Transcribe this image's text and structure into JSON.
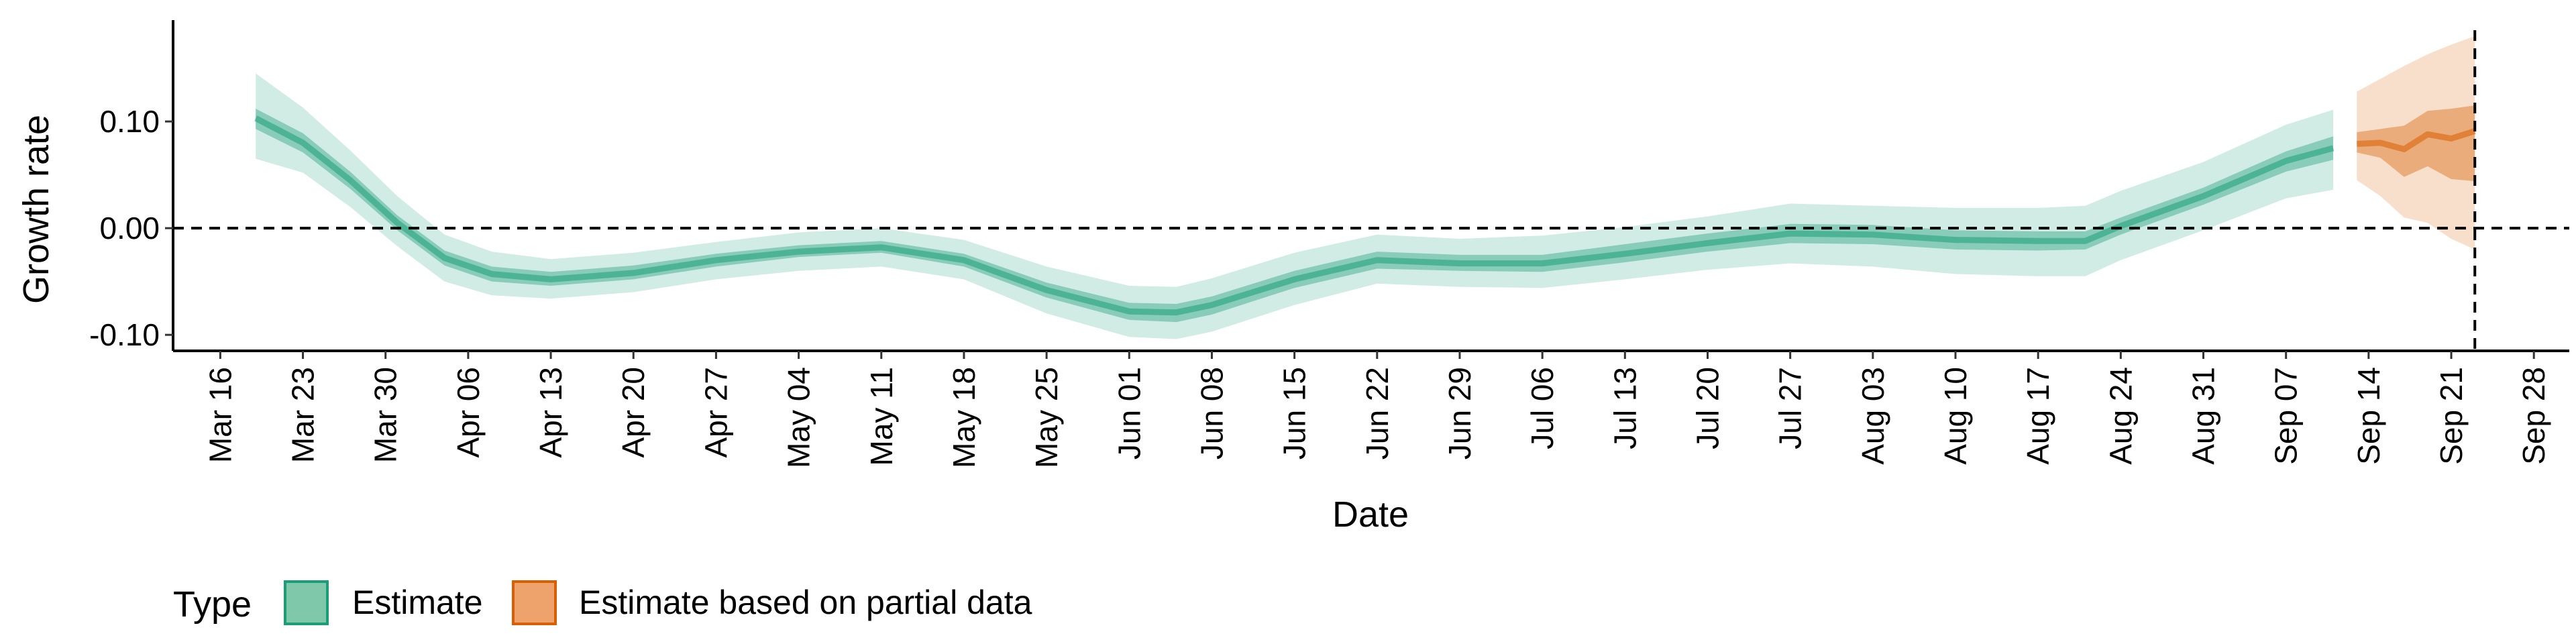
{
  "chart_data": {
    "type": "area",
    "title": "",
    "xlabel": "Date",
    "ylabel": "Growth rate",
    "x_axis": {
      "type": "date",
      "range": [
        "2020-03-12",
        "2020-10-01"
      ],
      "ticks": [
        "2020-03-16",
        "2020-03-23",
        "2020-03-30",
        "2020-04-06",
        "2020-04-13",
        "2020-04-20",
        "2020-04-27",
        "2020-05-04",
        "2020-05-11",
        "2020-05-18",
        "2020-05-25",
        "2020-06-01",
        "2020-06-08",
        "2020-06-15",
        "2020-06-22",
        "2020-06-29",
        "2020-07-06",
        "2020-07-13",
        "2020-07-20",
        "2020-07-27",
        "2020-08-03",
        "2020-08-10",
        "2020-08-17",
        "2020-08-24",
        "2020-08-31",
        "2020-09-07",
        "2020-09-14",
        "2020-09-21",
        "2020-09-28"
      ],
      "tick_labels": [
        "Mar 16",
        "Mar 23",
        "Mar 30",
        "Apr 06",
        "Apr 13",
        "Apr 20",
        "Apr 27",
        "May 04",
        "May 11",
        "May 18",
        "May 25",
        "Jun 01",
        "Jun 08",
        "Jun 15",
        "Jun 22",
        "Jun 29",
        "Jul 06",
        "Jul 13",
        "Jul 20",
        "Jul 27",
        "Aug 03",
        "Aug 10",
        "Aug 17",
        "Aug 24",
        "Aug 31",
        "Sep 07",
        "Sep 14",
        "Sep 21",
        "Sep 28"
      ]
    },
    "y_axis": {
      "range": [
        -0.115,
        0.195
      ],
      "ticks": [
        0.1,
        0.0,
        -0.1
      ],
      "tick_labels": [
        "0.10",
        "0.00",
        "-0.10"
      ]
    },
    "reference_lines": [
      {
        "axis": "y",
        "value": 0,
        "style": "dashed"
      },
      {
        "axis": "x",
        "value": "2020-09-23",
        "style": "dashed"
      }
    ],
    "grid": false,
    "legend": {
      "title": "Type",
      "position": "bottom-left",
      "entries": [
        {
          "label": "Estimate",
          "fill": "#7fc8aa",
          "border": "#1b9e77"
        },
        {
          "label": "Estimate based on partial data",
          "fill": "#eda36b",
          "border": "#d95f02"
        }
      ]
    },
    "series": [
      {
        "name": "Estimate",
        "color": "#1b9e77",
        "x": [
          "2020-03-19",
          "2020-03-23",
          "2020-03-27",
          "2020-03-31",
          "2020-04-04",
          "2020-04-08",
          "2020-04-13",
          "2020-04-20",
          "2020-04-27",
          "2020-05-04",
          "2020-05-11",
          "2020-05-18",
          "2020-05-25",
          "2020-06-01",
          "2020-06-05",
          "2020-06-08",
          "2020-06-15",
          "2020-06-22",
          "2020-06-29",
          "2020-07-06",
          "2020-07-13",
          "2020-07-20",
          "2020-07-27",
          "2020-08-03",
          "2020-08-10",
          "2020-08-17",
          "2020-08-21",
          "2020-08-24",
          "2020-08-31",
          "2020-09-07",
          "2020-09-11"
        ],
        "median": [
          0.103,
          0.08,
          0.045,
          0.005,
          -0.028,
          -0.043,
          -0.048,
          -0.042,
          -0.03,
          -0.022,
          -0.018,
          -0.03,
          -0.058,
          -0.078,
          -0.079,
          -0.072,
          -0.048,
          -0.03,
          -0.033,
          -0.033,
          -0.024,
          -0.014,
          -0.005,
          -0.006,
          -0.011,
          -0.012,
          -0.012,
          0.002,
          0.03,
          0.063,
          0.075
        ],
        "lower_50": [
          0.093,
          0.071,
          0.037,
          -0.002,
          -0.035,
          -0.05,
          -0.054,
          -0.048,
          -0.036,
          -0.027,
          -0.023,
          -0.036,
          -0.065,
          -0.086,
          -0.088,
          -0.081,
          -0.056,
          -0.038,
          -0.04,
          -0.041,
          -0.032,
          -0.022,
          -0.014,
          -0.015,
          -0.02,
          -0.021,
          -0.02,
          -0.006,
          0.022,
          0.053,
          0.064
        ],
        "upper_50": [
          0.112,
          0.089,
          0.053,
          0.012,
          -0.021,
          -0.036,
          -0.041,
          -0.035,
          -0.024,
          -0.016,
          -0.012,
          -0.024,
          -0.051,
          -0.07,
          -0.071,
          -0.064,
          -0.04,
          -0.022,
          -0.025,
          -0.025,
          -0.015,
          -0.005,
          0.004,
          0.003,
          -0.002,
          -0.003,
          -0.003,
          0.01,
          0.038,
          0.072,
          0.086
        ],
        "lower_90": [
          0.065,
          0.052,
          0.02,
          -0.017,
          -0.05,
          -0.063,
          -0.066,
          -0.06,
          -0.048,
          -0.04,
          -0.036,
          -0.048,
          -0.08,
          -0.102,
          -0.104,
          -0.097,
          -0.072,
          -0.052,
          -0.055,
          -0.056,
          -0.048,
          -0.039,
          -0.033,
          -0.036,
          -0.043,
          -0.045,
          -0.045,
          -0.03,
          -0.002,
          0.028,
          0.036
        ],
        "upper_90": [
          0.145,
          0.113,
          0.073,
          0.03,
          -0.006,
          -0.022,
          -0.029,
          -0.023,
          -0.013,
          -0.004,
          0.0,
          -0.011,
          -0.036,
          -0.054,
          -0.055,
          -0.047,
          -0.023,
          -0.006,
          -0.01,
          -0.007,
          0.001,
          0.011,
          0.023,
          0.021,
          0.019,
          0.019,
          0.021,
          0.035,
          0.062,
          0.097,
          0.111
        ]
      },
      {
        "name": "Estimate based on partial data",
        "color": "#d95f02",
        "x": [
          "2020-09-13",
          "2020-09-15",
          "2020-09-17",
          "2020-09-19",
          "2020-09-21",
          "2020-09-23"
        ],
        "median": [
          0.079,
          0.08,
          0.074,
          0.088,
          0.084,
          0.091
        ],
        "lower_50": [
          0.071,
          0.066,
          0.048,
          0.058,
          0.046,
          0.044
        ],
        "upper_50": [
          0.09,
          0.093,
          0.096,
          0.11,
          0.112,
          0.115
        ],
        "lower_90": [
          0.045,
          0.03,
          0.01,
          0.005,
          -0.01,
          -0.02
        ],
        "upper_90": [
          0.128,
          0.14,
          0.152,
          0.163,
          0.172,
          0.18
        ]
      }
    ]
  }
}
